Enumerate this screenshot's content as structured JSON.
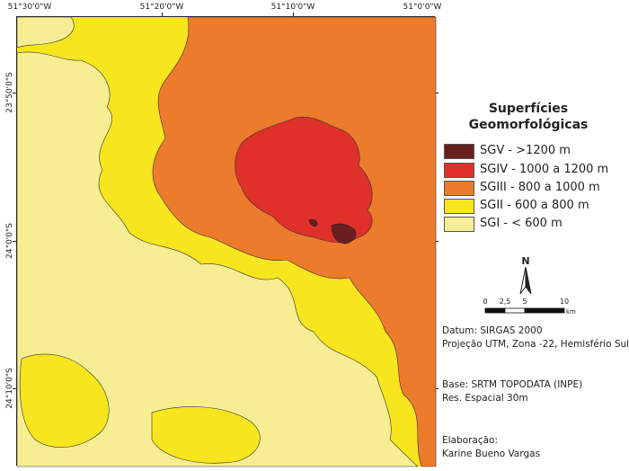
{
  "map": {
    "top_ticks": [
      "51°30'0\"W",
      "51°20'0\"W",
      "51°10'0\"W",
      "51°0'0\"W"
    ],
    "left_ticks": [
      "23°50'0\"S",
      "24°0'0\"S",
      "24°10'0\"S"
    ],
    "colors": {
      "sgv": "#6a1f1f",
      "sgiv": "#e0302a",
      "sgiii": "#ec7b2c",
      "sgii": "#f7e51e",
      "sgi": "#f7ee93"
    }
  },
  "legend": {
    "title_line1": "Superfícies",
    "title_line2": "Geomorfológicas",
    "items": [
      {
        "label": "SGV - >1200 m",
        "color": "#6a1f1f"
      },
      {
        "label": "SGIV - 1000 a 1200 m",
        "color": "#e0302a"
      },
      {
        "label": "SGIII - 800 a 1000 m",
        "color": "#ec7b2c"
      },
      {
        "label": "SGII - 600 a 800 m",
        "color": "#f7e51e"
      },
      {
        "label": "SGI - < 600 m",
        "color": "#f7ee93"
      }
    ]
  },
  "north": {
    "label": "N"
  },
  "scale": {
    "labels": [
      "0",
      "2,5",
      "5",
      "10"
    ],
    "unit": "km"
  },
  "info": {
    "datum": "Datum: SIRGAS 2000",
    "projection": "Projeção UTM, Zona -22, Hemisfério Sul",
    "base": "Base: SRTM TOPODATA (INPE)",
    "resolution": "Res. Espacial 30m",
    "credit_label": "Elaboração:",
    "author": "Karine Bueno Vargas"
  }
}
